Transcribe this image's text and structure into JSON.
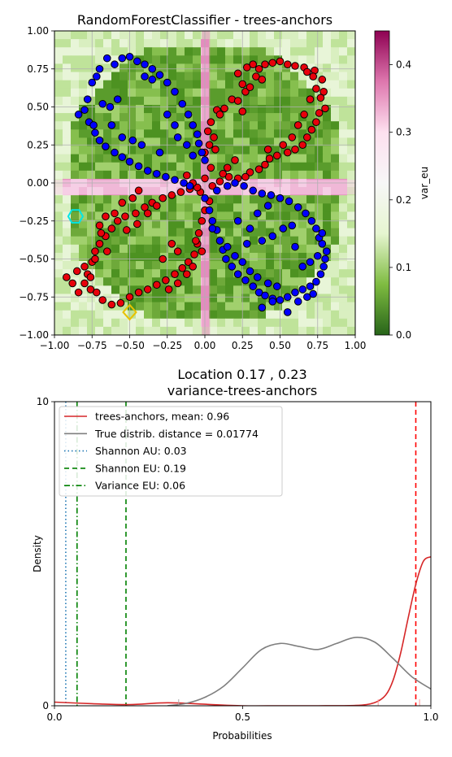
{
  "chart_data": [
    {
      "type": "heatmap",
      "title": "RandomForestClassifier - trees-anchors",
      "xlim": [
        -1.0,
        1.0
      ],
      "ylim": [
        -1.0,
        1.0
      ],
      "xticks": [
        "−1.00",
        "−0.75",
        "−0.50",
        "−0.25",
        "0.00",
        "0.25",
        "0.50",
        "0.75",
        "1.00"
      ],
      "yticks": [
        "−1.00",
        "−0.75",
        "−0.50",
        "−0.25",
        "0.00",
        "0.25",
        "0.50",
        "0.75",
        "1.00"
      ],
      "grid": true,
      "colorbar": {
        "label": "var_eu",
        "range": [
          0.0,
          0.45
        ],
        "ticks": [
          "0.0",
          "0.1",
          "0.2",
          "0.3",
          "0.4"
        ],
        "colormap": [
          "#276419",
          "#7fbc41",
          "#e6f5d0",
          "#f7f7f7",
          "#fde0ef",
          "#de77ae",
          "#8e0152"
        ]
      },
      "point_colors": {
        "class_0": "#e8000b",
        "class_1": "#0000ff",
        "edge": "#000000"
      },
      "markers": [
        {
          "shape": "hexagon",
          "x": -0.86,
          "y": -0.22,
          "color": "#00e5e5"
        },
        {
          "shape": "diamond",
          "x": -0.5,
          "y": -0.85,
          "color": "#e8c200"
        }
      ],
      "points_class_0": [
        [
          0.28,
          0.76
        ],
        [
          0.32,
          0.78
        ],
        [
          0.36,
          0.75
        ],
        [
          0.4,
          0.78
        ],
        [
          0.45,
          0.79
        ],
        [
          0.5,
          0.8
        ],
        [
          0.55,
          0.78
        ],
        [
          0.6,
          0.77
        ],
        [
          0.66,
          0.76
        ],
        [
          0.73,
          0.74
        ],
        [
          0.22,
          0.72
        ],
        [
          0.25,
          0.65
        ],
        [
          0.27,
          0.6
        ],
        [
          0.3,
          0.63
        ],
        [
          0.34,
          0.7
        ],
        [
          0.38,
          0.68
        ],
        [
          0.18,
          0.55
        ],
        [
          0.22,
          0.54
        ],
        [
          0.25,
          0.47
        ],
        [
          0.08,
          0.48
        ],
        [
          0.1,
          0.45
        ],
        [
          0.13,
          0.49
        ],
        [
          0.04,
          0.4
        ],
        [
          0.02,
          0.34
        ],
        [
          0.06,
          0.3
        ],
        [
          0.03,
          0.25
        ],
        [
          0.0,
          0.2
        ],
        [
          0.07,
          0.22
        ],
        [
          0.78,
          0.68
        ],
        [
          0.79,
          0.6
        ],
        [
          0.77,
          0.56
        ],
        [
          0.8,
          0.49
        ],
        [
          0.76,
          0.46
        ],
        [
          0.74,
          0.4
        ],
        [
          0.71,
          0.35
        ],
        [
          0.68,
          0.3
        ],
        [
          0.65,
          0.25
        ],
        [
          0.6,
          0.22
        ],
        [
          0.55,
          0.2
        ],
        [
          0.48,
          0.18
        ],
        [
          0.43,
          0.16
        ],
        [
          0.4,
          0.12
        ],
        [
          0.36,
          0.09
        ],
        [
          0.3,
          0.07
        ],
        [
          0.27,
          0.04
        ],
        [
          0.22,
          0.03
        ],
        [
          0.16,
          0.04
        ],
        [
          0.1,
          0.01
        ],
        [
          0.05,
          -0.02
        ],
        [
          0.0,
          0.03
        ],
        [
          -0.03,
          -0.06
        ],
        [
          -0.05,
          -0.03
        ],
        [
          -0.1,
          -0.04
        ],
        [
          -0.16,
          -0.06
        ],
        [
          -0.22,
          -0.08
        ],
        [
          -0.28,
          -0.1
        ],
        [
          -0.35,
          -0.13
        ],
        [
          -0.4,
          -0.16
        ],
        [
          -0.46,
          -0.2
        ],
        [
          -0.53,
          -0.22
        ],
        [
          -0.58,
          -0.25
        ],
        [
          -0.62,
          -0.3
        ],
        [
          -0.66,
          -0.35
        ],
        [
          -0.7,
          -0.4
        ],
        [
          -0.73,
          -0.45
        ],
        [
          -0.75,
          -0.52
        ],
        [
          -0.78,
          -0.6
        ],
        [
          -0.8,
          -0.66
        ],
        [
          -0.76,
          -0.7
        ],
        [
          -0.72,
          -0.72
        ],
        [
          -0.68,
          -0.77
        ],
        [
          -0.62,
          -0.8
        ],
        [
          -0.56,
          -0.79
        ],
        [
          -0.5,
          -0.75
        ],
        [
          -0.44,
          -0.72
        ],
        [
          -0.38,
          -0.7
        ],
        [
          -0.32,
          -0.67
        ],
        [
          -0.26,
          -0.64
        ],
        [
          -0.2,
          -0.6
        ],
        [
          -0.15,
          -0.56
        ],
        [
          -0.11,
          -0.52
        ],
        [
          -0.07,
          -0.47
        ],
        [
          -0.05,
          -0.4
        ],
        [
          -0.04,
          -0.33
        ],
        [
          -0.02,
          -0.25
        ],
        [
          0.0,
          -0.18
        ],
        [
          0.03,
          -0.12
        ],
        [
          -0.08,
          -0.55
        ],
        [
          -0.12,
          -0.6
        ],
        [
          -0.18,
          -0.66
        ],
        [
          -0.24,
          -0.7
        ],
        [
          -0.88,
          -0.66
        ],
        [
          -0.92,
          -0.62
        ],
        [
          -0.85,
          -0.58
        ],
        [
          -0.8,
          -0.55
        ],
        [
          -0.7,
          -0.28
        ],
        [
          -0.66,
          -0.22
        ],
        [
          -0.6,
          -0.2
        ],
        [
          -0.65,
          -0.45
        ],
        [
          -0.55,
          -0.13
        ],
        [
          -0.48,
          -0.1
        ],
        [
          -0.44,
          -0.05
        ],
        [
          -0.08,
          0.0
        ],
        [
          -0.12,
          0.05
        ],
        [
          0.15,
          0.1
        ],
        [
          0.2,
          0.15
        ],
        [
          0.42,
          0.22
        ],
        [
          0.52,
          0.25
        ],
        [
          0.58,
          0.3
        ],
        [
          0.62,
          0.38
        ],
        [
          0.66,
          0.45
        ],
        [
          0.7,
          0.55
        ],
        [
          0.74,
          0.62
        ],
        [
          0.72,
          0.7
        ],
        [
          0.68,
          0.73
        ],
        [
          -0.76,
          -0.62
        ],
        [
          -0.84,
          -0.72
        ],
        [
          -0.73,
          -0.5
        ],
        [
          -0.69,
          -0.33
        ],
        [
          -0.52,
          -0.31
        ],
        [
          -0.45,
          -0.27
        ],
        [
          -0.38,
          -0.2
        ],
        [
          -0.32,
          -0.15
        ],
        [
          -0.28,
          -0.5
        ],
        [
          -0.22,
          -0.4
        ],
        [
          -0.18,
          -0.45
        ],
        [
          -0.02,
          -0.45
        ],
        [
          -0.06,
          -0.38
        ],
        [
          0.04,
          0.1
        ],
        [
          0.12,
          0.06
        ]
      ],
      "points_class_1": [
        [
          -0.65,
          0.82
        ],
        [
          -0.6,
          0.78
        ],
        [
          -0.55,
          0.82
        ],
        [
          -0.5,
          0.83
        ],
        [
          -0.45,
          0.8
        ],
        [
          -0.4,
          0.78
        ],
        [
          -0.35,
          0.75
        ],
        [
          -0.3,
          0.71
        ],
        [
          -0.25,
          0.66
        ],
        [
          -0.2,
          0.6
        ],
        [
          -0.7,
          0.75
        ],
        [
          -0.72,
          0.7
        ],
        [
          -0.75,
          0.66
        ],
        [
          -0.78,
          0.55
        ],
        [
          -0.8,
          0.48
        ],
        [
          -0.84,
          0.45
        ],
        [
          -0.77,
          0.4
        ],
        [
          -0.73,
          0.33
        ],
        [
          -0.7,
          0.28
        ],
        [
          -0.66,
          0.24
        ],
        [
          -0.6,
          0.2
        ],
        [
          -0.55,
          0.17
        ],
        [
          -0.5,
          0.14
        ],
        [
          -0.44,
          0.11
        ],
        [
          -0.38,
          0.08
        ],
        [
          -0.32,
          0.06
        ],
        [
          -0.26,
          0.04
        ],
        [
          -0.2,
          0.02
        ],
        [
          -0.14,
          0.0
        ],
        [
          -0.1,
          -0.02
        ],
        [
          -0.15,
          0.52
        ],
        [
          -0.11,
          0.45
        ],
        [
          -0.08,
          0.38
        ],
        [
          -0.05,
          0.32
        ],
        [
          -0.04,
          0.26
        ],
        [
          -0.02,
          0.2
        ],
        [
          0.0,
          0.15
        ],
        [
          -0.63,
          0.5
        ],
        [
          -0.68,
          0.52
        ],
        [
          -0.74,
          0.38
        ],
        [
          0.0,
          -0.1
        ],
        [
          0.03,
          -0.18
        ],
        [
          0.05,
          -0.25
        ],
        [
          0.08,
          -0.31
        ],
        [
          0.1,
          -0.38
        ],
        [
          0.12,
          -0.44
        ],
        [
          0.14,
          -0.5
        ],
        [
          0.18,
          -0.55
        ],
        [
          0.22,
          -0.6
        ],
        [
          0.27,
          -0.64
        ],
        [
          0.32,
          -0.68
        ],
        [
          0.36,
          -0.72
        ],
        [
          0.4,
          -0.74
        ],
        [
          0.45,
          -0.76
        ],
        [
          0.5,
          -0.77
        ],
        [
          0.55,
          -0.75
        ],
        [
          0.6,
          -0.72
        ],
        [
          0.65,
          -0.7
        ],
        [
          0.7,
          -0.68
        ],
        [
          0.74,
          -0.65
        ],
        [
          0.77,
          -0.6
        ],
        [
          0.79,
          -0.55
        ],
        [
          0.8,
          -0.5
        ],
        [
          0.81,
          -0.45
        ],
        [
          0.78,
          -0.4
        ],
        [
          0.76,
          -0.36
        ],
        [
          0.74,
          -0.3
        ],
        [
          0.71,
          -0.25
        ],
        [
          0.67,
          -0.2
        ],
        [
          0.62,
          -0.16
        ],
        [
          0.56,
          -0.12
        ],
        [
          0.5,
          -0.1
        ],
        [
          0.44,
          -0.08
        ],
        [
          0.38,
          -0.07
        ],
        [
          0.32,
          -0.05
        ],
        [
          0.26,
          -0.02
        ],
        [
          0.2,
          0.0
        ],
        [
          0.15,
          -0.02
        ],
        [
          0.08,
          -0.05
        ],
        [
          0.05,
          -0.3
        ],
        [
          0.15,
          -0.42
        ],
        [
          0.2,
          -0.48
        ],
        [
          0.25,
          -0.52
        ],
        [
          0.3,
          -0.58
        ],
        [
          0.35,
          -0.62
        ],
        [
          0.42,
          -0.66
        ],
        [
          0.48,
          -0.68
        ],
        [
          0.55,
          -0.85
        ],
        [
          0.38,
          -0.82
        ],
        [
          0.45,
          -0.78
        ],
        [
          0.62,
          -0.78
        ],
        [
          0.68,
          -0.75
        ],
        [
          0.72,
          -0.73
        ],
        [
          0.75,
          -0.48
        ],
        [
          0.78,
          -0.33
        ],
        [
          0.65,
          -0.55
        ],
        [
          0.7,
          -0.52
        ],
        [
          -0.35,
          0.68
        ],
        [
          -0.4,
          0.7
        ],
        [
          -0.58,
          0.55
        ],
        [
          -0.25,
          0.45
        ],
        [
          -0.2,
          0.38
        ],
        [
          -0.18,
          0.3
        ],
        [
          -0.12,
          0.25
        ],
        [
          -0.08,
          0.18
        ],
        [
          -0.48,
          0.28
        ],
        [
          -0.42,
          0.25
        ],
        [
          -0.55,
          0.3
        ],
        [
          -0.62,
          0.38
        ],
        [
          -0.3,
          0.2
        ],
        [
          0.28,
          -0.4
        ],
        [
          0.38,
          -0.38
        ],
        [
          0.45,
          -0.35
        ],
        [
          0.52,
          -0.3
        ],
        [
          0.58,
          -0.28
        ],
        [
          0.35,
          -0.2
        ],
        [
          0.42,
          -0.15
        ],
        [
          0.22,
          -0.25
        ],
        [
          0.3,
          -0.3
        ],
        [
          0.6,
          -0.42
        ]
      ]
    },
    {
      "type": "line",
      "title": "Location 0.17 , 0.23",
      "subtitle": "variance-trees-anchors",
      "xlabel": "Probabilities",
      "ylabel": "Density",
      "xlim": [
        0.0,
        1.0
      ],
      "ylim": [
        0,
        10
      ],
      "xticks": [
        "0.0",
        "0.5",
        "1.0"
      ],
      "yticks": [
        "0",
        "10"
      ],
      "legend_position": "top-left",
      "series": [
        {
          "name": "trees-anchors, mean: 0.96",
          "color": "#d62728",
          "style": "solid",
          "x": [
            0.0,
            0.1,
            0.2,
            0.3,
            0.4,
            0.5,
            0.6,
            0.7,
            0.8,
            0.85,
            0.88,
            0.9,
            0.92,
            0.94,
            0.96,
            0.98,
            1.0
          ],
          "y": [
            0.12,
            0.07,
            0.04,
            0.1,
            0.05,
            0.0,
            0.0,
            0.0,
            0.01,
            0.1,
            0.35,
            0.85,
            1.75,
            2.9,
            4.0,
            4.75,
            4.9
          ]
        },
        {
          "name": "True distrib. distance = 0.01774",
          "color": "#7f7f7f",
          "style": "solid",
          "x": [
            0.3,
            0.35,
            0.4,
            0.45,
            0.5,
            0.55,
            0.6,
            0.65,
            0.7,
            0.75,
            0.8,
            0.85,
            0.9,
            0.95,
            1.0
          ],
          "y": [
            0.0,
            0.08,
            0.28,
            0.65,
            1.25,
            1.85,
            2.05,
            1.95,
            1.85,
            2.05,
            2.25,
            2.1,
            1.55,
            0.95,
            0.55
          ]
        }
      ],
      "vlines": [
        {
          "name": "Shannon AU: 0.03",
          "x": 0.03,
          "color": "#1f77b4",
          "style": "dotted"
        },
        {
          "name": "Shannon EU: 0.19",
          "x": 0.19,
          "color": "#008000",
          "style": "dashed"
        },
        {
          "name": "Variance EU: 0.06",
          "x": 0.06,
          "color": "#008000",
          "style": "dashdot"
        },
        {
          "x": 0.96,
          "color": "#ff0000",
          "style": "dashed"
        }
      ],
      "rug": [
        {
          "x": 0.33,
          "color": "#aaaaaa"
        },
        {
          "x": 0.86,
          "color": "#ff9999"
        },
        {
          "x": 0.97,
          "color": "#ff9999"
        }
      ]
    }
  ]
}
